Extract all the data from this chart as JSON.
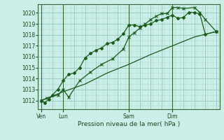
{
  "bg_color": "#cceee8",
  "grid_color_minor": "#b8ddd8",
  "grid_color_major": "#aaccc8",
  "line_color": "#1a5c1a",
  "xlabel": "Pression niveau de la mer( hPa )",
  "ylim": [
    1011.2,
    1020.8
  ],
  "yticks": [
    1012,
    1013,
    1014,
    1015,
    1016,
    1017,
    1018,
    1019,
    1020
  ],
  "xtick_labels": [
    "Ven",
    "Lun",
    "Sam",
    "Dim"
  ],
  "xtick_positions": [
    0,
    2,
    8,
    12
  ],
  "xlim": [
    -0.3,
    16.3
  ],
  "series1_x": [
    0,
    0.3,
    0.7,
    1.0,
    1.5,
    2.0,
    2.5,
    3.0,
    3.5,
    4.0,
    4.5,
    5.0,
    5.5,
    6.0,
    6.5,
    7.0,
    7.5,
    8.0,
    8.5,
    9.0,
    9.5,
    10.0,
    10.5,
    11.0,
    11.5,
    12.0,
    12.5,
    13.0,
    13.5,
    14.0,
    14.5,
    15.0,
    16.0
  ],
  "series1_y": [
    1012.0,
    1011.8,
    1012.1,
    1012.5,
    1013.0,
    1013.8,
    1014.4,
    1014.5,
    1015.0,
    1015.9,
    1016.3,
    1016.6,
    1016.8,
    1017.2,
    1017.3,
    1017.6,
    1018.1,
    1018.9,
    1018.9,
    1018.75,
    1018.9,
    1019.0,
    1019.3,
    1019.4,
    1019.6,
    1019.8,
    1019.5,
    1019.6,
    1020.05,
    1020.05,
    1019.9,
    1018.05,
    1018.3
  ],
  "series2_x": [
    0,
    0.5,
    1.5,
    2.0,
    2.5,
    3.5,
    4.5,
    5.5,
    6.5,
    7.5,
    8.0,
    8.5,
    9.0,
    9.5,
    10.0,
    10.5,
    11.0,
    11.5,
    12.0,
    12.5,
    13.0,
    14.0,
    14.5,
    15.0,
    16.0
  ],
  "series2_y": [
    1012.0,
    1012.2,
    1012.5,
    1013.0,
    1012.3,
    1013.8,
    1014.6,
    1015.3,
    1015.8,
    1016.7,
    1017.8,
    1018.2,
    1018.6,
    1019.0,
    1019.4,
    1019.7,
    1019.95,
    1019.95,
    1020.5,
    1020.5,
    1020.4,
    1020.5,
    1020.05,
    1019.4,
    1018.3
  ],
  "series3_x": [
    0,
    2,
    4,
    6,
    8,
    10,
    12,
    14,
    16
  ],
  "series3_y": [
    1012.0,
    1012.8,
    1013.5,
    1014.5,
    1015.3,
    1016.2,
    1017.0,
    1017.8,
    1018.3
  ],
  "vline_positions": [
    0,
    2,
    8,
    12
  ]
}
